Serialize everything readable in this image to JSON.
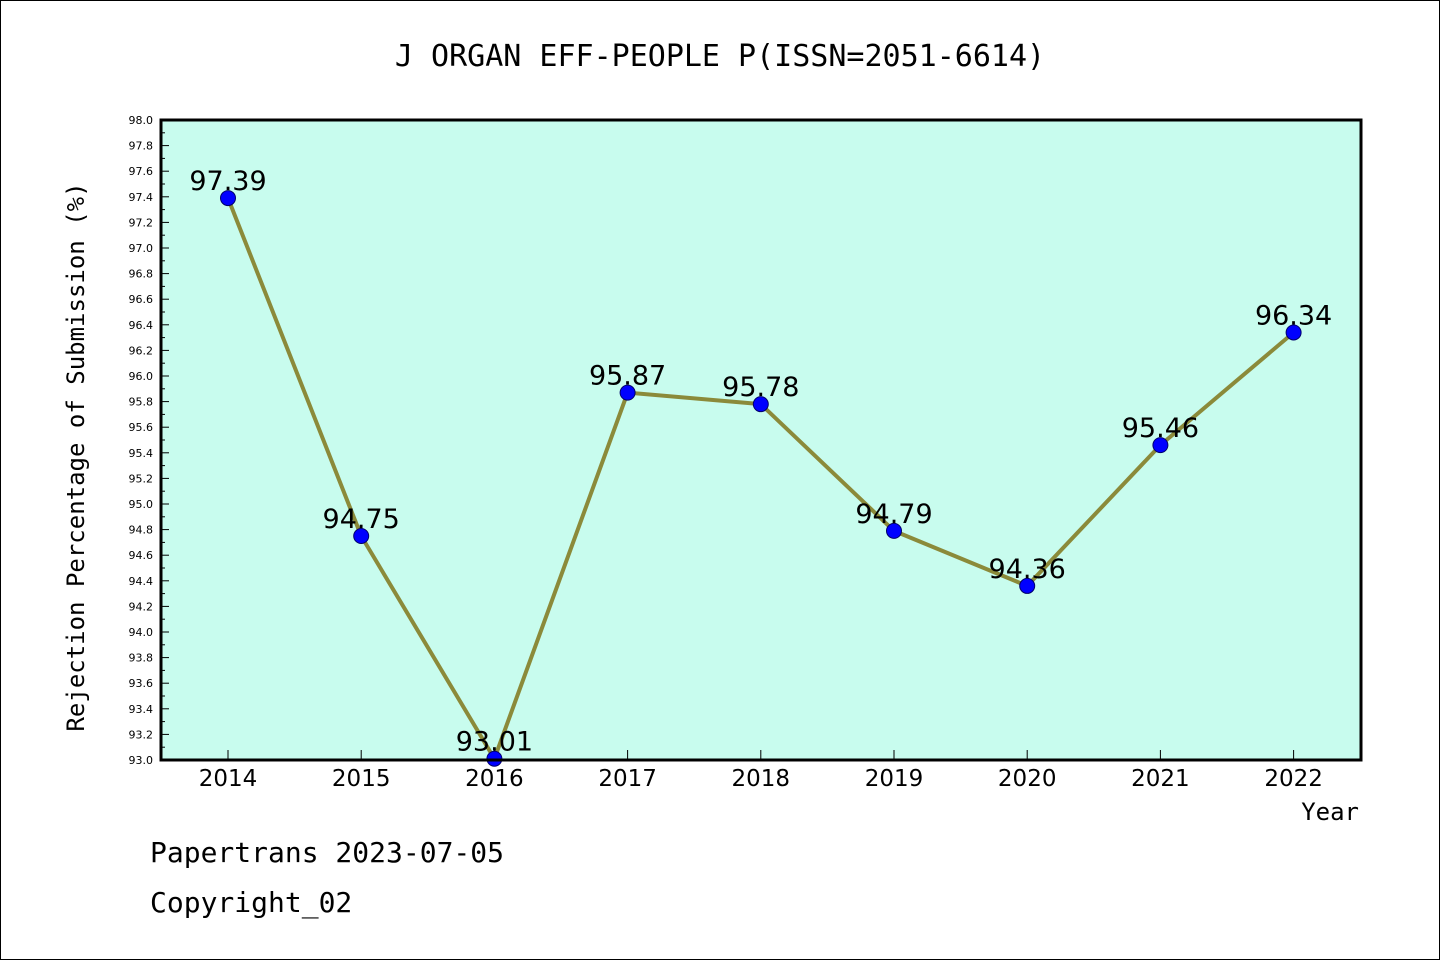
{
  "chart_data": {
    "type": "line",
    "title": "J ORGAN EFF-PEOPLE P(ISSN=2051-6614)",
    "xlabel": "Year",
    "ylabel": "Rejection Percentage of Submission (%)",
    "categories": [
      "2014",
      "2015",
      "2016",
      "2017",
      "2018",
      "2019",
      "2020",
      "2021",
      "2022"
    ],
    "values": [
      97.39,
      94.75,
      93.01,
      95.87,
      95.78,
      94.79,
      94.36,
      95.46,
      96.34
    ],
    "data_labels": [
      "97.39",
      "94.75",
      "93.01",
      "95.87",
      "95.78",
      "94.79",
      "94.36",
      "95.46",
      "96.34"
    ],
    "ylim": [
      93.0,
      98.0
    ],
    "ytick_step": 0.2,
    "grid": false,
    "colors": {
      "plot_background": "#c8fcee",
      "line": "#8b8a3a",
      "marker": "#0000ff"
    }
  },
  "footer": {
    "line1": "Papertrans 2023-07-05",
    "line2": "Copyright_02"
  }
}
